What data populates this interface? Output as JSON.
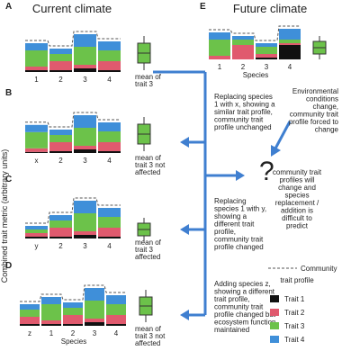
{
  "traits": [
    {
      "name": "Trait 1",
      "color": "#111111"
    },
    {
      "name": "Trait 2",
      "color": "#e05a6e"
    },
    {
      "name": "Trait 3",
      "color": "#6cc24a"
    },
    {
      "name": "Trait 4",
      "color": "#3f8fd9"
    }
  ],
  "y_axis_label": "Combined trait metric (arbitrary units)",
  "panels": [
    {
      "label": "A",
      "title": "Current climate",
      "categories": [
        "1",
        "2",
        "3",
        "4"
      ],
      "stacks": [
        [
          0.5,
          1,
          4.5,
          2
        ],
        [
          0.5,
          2.5,
          2,
          1.5
        ],
        [
          1,
          1,
          5,
          3.5
        ],
        [
          0.5,
          2.5,
          3,
          2.5
        ]
      ],
      "mean_label": [
        "mean of",
        "trait 3"
      ]
    },
    {
      "label": "B",
      "categories": [
        "x",
        "2",
        "3",
        "4"
      ],
      "stacks": [
        [
          0.3,
          1,
          4.5,
          2
        ],
        [
          0.5,
          2.5,
          2,
          1.5
        ],
        [
          1,
          1,
          5,
          3.5
        ],
        [
          0.5,
          2.5,
          3,
          2.5
        ]
      ],
      "mean_label": [
        "mean of",
        "trait 3 not",
        "affected"
      ]
    },
    {
      "label": "C",
      "categories": [
        "y",
        "2",
        "3",
        "4"
      ],
      "stacks": [
        [
          0.5,
          1,
          1,
          1
        ],
        [
          0.5,
          2.5,
          2,
          1.5
        ],
        [
          1,
          1,
          5,
          3.5
        ],
        [
          0.5,
          2.5,
          3,
          2.5
        ]
      ],
      "mean_label": [
        "mean of",
        "trait 3",
        "affected"
      ]
    },
    {
      "label": "D",
      "categories": [
        "z",
        "1",
        "2",
        "3",
        "4"
      ],
      "x_label": "Species",
      "stacks": [
        [
          0.5,
          2,
          2,
          1.5
        ],
        [
          0.5,
          1,
          4.5,
          2
        ],
        [
          0.5,
          2.5,
          2,
          1.5
        ],
        [
          1,
          1,
          5,
          3.5
        ],
        [
          0.5,
          2.5,
          3,
          2.5
        ]
      ],
      "mean_label": [
        "mean of",
        "trait 3 not",
        "affected"
      ]
    },
    {
      "label": "E",
      "title": "Future climate",
      "categories": [
        "1",
        "2",
        "3",
        "4"
      ],
      "x_label": "Species",
      "stacks": [
        [
          0,
          1,
          4.5,
          2
        ],
        [
          0,
          4,
          1.5,
          1
        ],
        [
          0.5,
          1,
          2,
          1
        ],
        [
          4,
          0.5,
          1,
          3
        ]
      ]
    }
  ],
  "notes": {
    "b": [
      "Replacing species",
      "1 with x, showing a",
      "similar trait profile,",
      "community trait",
      "profile unchanged"
    ],
    "c": [
      "Replacing",
      "species 1 with y,",
      "showing a",
      "different trait",
      "profile,",
      "community trait",
      "profile changed"
    ],
    "d": [
      "Adding species z,",
      "showing a different",
      "trait profile,",
      "community trait",
      "profile changed but",
      "ecosystem function",
      "maintained"
    ],
    "e": [
      "Environmental",
      "conditions",
      "change,",
      "community trait",
      "profile forced to",
      "change"
    ],
    "question": "?",
    "outcome": [
      "community trait",
      "profiles will",
      "change and",
      "species",
      "replacement /",
      "addition is",
      "difficult to",
      "predict"
    ]
  },
  "legend_profile": [
    "Community",
    "trait profile"
  ]
}
